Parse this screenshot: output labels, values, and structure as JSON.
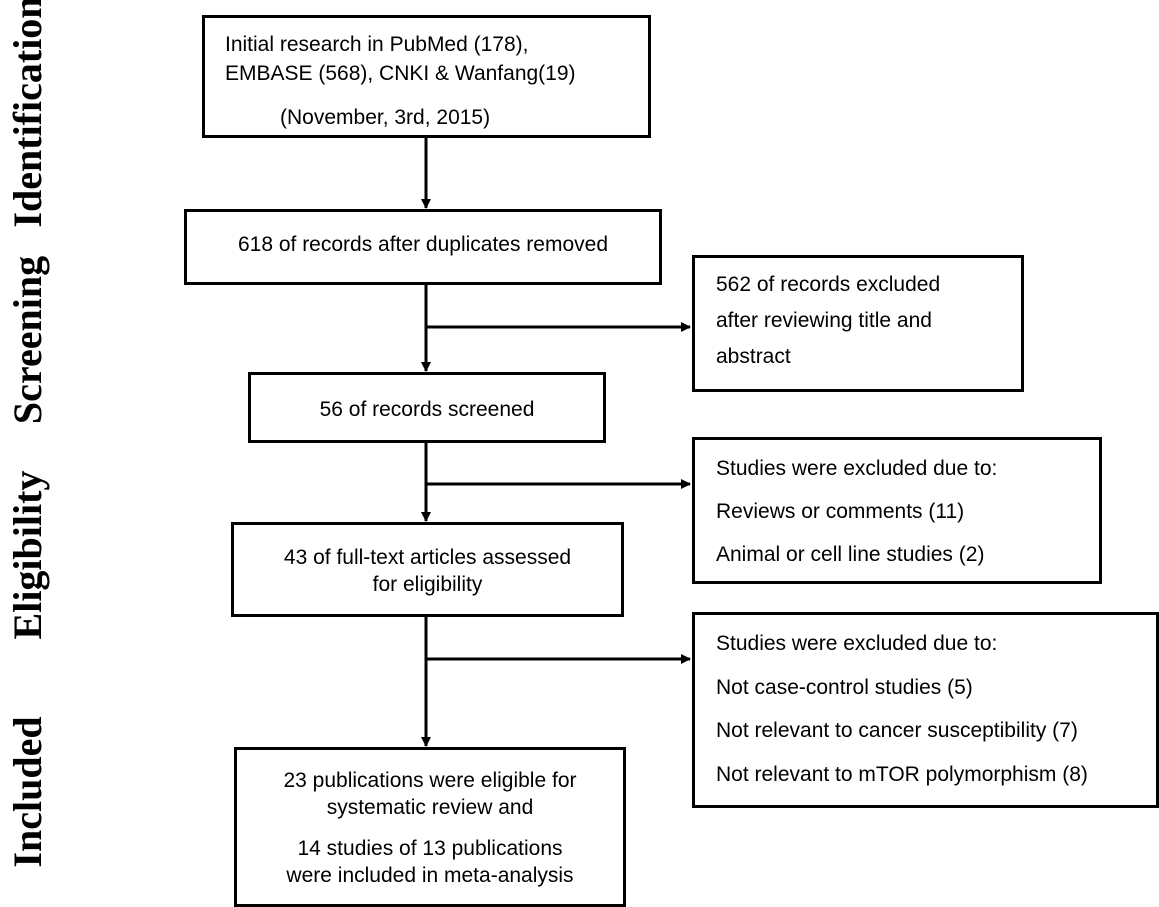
{
  "stages": {
    "identification": "Identification",
    "screening": "Screening",
    "eligibility": "Eligibility",
    "included": "Included"
  },
  "boxes": {
    "initial_search": {
      "line1": "Initial research in PubMed (178),",
      "line2": "EMBASE (568), CNKI & Wanfang(19)",
      "date": "(November, 3rd, 2015)"
    },
    "after_duplicates": {
      "text": "618 of records after duplicates removed"
    },
    "excluded_title_abstract": {
      "line1": "562 of records excluded",
      "line2": "after reviewing title and",
      "line3": "abstract"
    },
    "screened": {
      "text": "56 of records screened"
    },
    "excluded_eligibility": {
      "header": "Studies were excluded due to:",
      "items": [
        "Reviews or comments (11)",
        "Animal or cell line studies (2)"
      ]
    },
    "full_text": {
      "line1": "43 of full-text articles assessed",
      "line2": "for eligibility"
    },
    "excluded_included": {
      "header": "Studies were excluded due to:",
      "items": [
        "Not case-control studies (5)",
        "Not relevant to cancer susceptibility (7)",
        "Not relevant to mTOR polymorphism (8)"
      ]
    },
    "final": {
      "line1": "23 publications were eligible for",
      "line2": "systematic review and",
      "line3": "14 studies of 13 publications",
      "line4": "were included in meta-analysis"
    }
  }
}
